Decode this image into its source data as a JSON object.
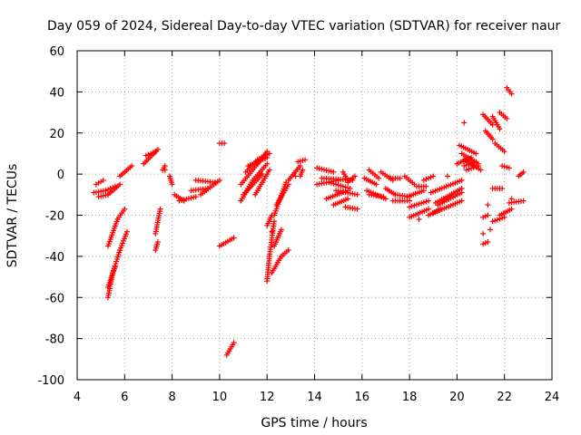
{
  "chart_data": {
    "type": "scatter",
    "title": "Day 059 of 2024, Sidereal Day-to-day VTEC variation (SDTVAR) for receiver naur",
    "xlabel": "GPS time / hours",
    "ylabel": "SDTVAR / TECUs",
    "xlim": [
      4,
      24
    ],
    "ylim": [
      -100,
      60
    ],
    "xticks": [
      4,
      6,
      8,
      10,
      12,
      14,
      16,
      18,
      20,
      22,
      24
    ],
    "yticks": [
      -100,
      -80,
      -60,
      -40,
      -20,
      0,
      20,
      40,
      60
    ],
    "grid": true,
    "marker": "+",
    "color": "#ff0000",
    "segments": [
      [
        [
          4.7,
          -9
        ],
        [
          5.2,
          -8
        ]
      ],
      [
        [
          4.8,
          -5
        ],
        [
          5.1,
          -3
        ]
      ],
      [
        [
          4.9,
          -11
        ],
        [
          5.3,
          -10
        ]
      ],
      [
        [
          5.2,
          -8
        ],
        [
          5.6,
          -6
        ]
      ],
      [
        [
          5.3,
          -10
        ],
        [
          5.8,
          -5
        ]
      ],
      [
        [
          5.8,
          -1
        ],
        [
          6.3,
          4
        ]
      ],
      [
        [
          5.3,
          -35
        ],
        [
          5.7,
          -22
        ],
        [
          6.0,
          -17
        ]
      ],
      [
        [
          5.3,
          -60
        ],
        [
          5.5,
          -48
        ],
        [
          5.8,
          -37
        ],
        [
          6.1,
          -28
        ]
      ],
      [
        [
          5.3,
          -55
        ],
        [
          5.6,
          -45
        ]
      ],
      [
        [
          6.8,
          5
        ],
        [
          7.4,
          12
        ]
      ],
      [
        [
          6.9,
          9
        ],
        [
          7.3,
          11
        ]
      ],
      [
        [
          7.6,
          2
        ],
        [
          7.7,
          4
        ]
      ],
      [
        [
          7.3,
          -37
        ],
        [
          7.4,
          -33
        ]
      ],
      [
        [
          7.3,
          -29
        ],
        [
          7.5,
          -17
        ]
      ],
      [
        [
          7.9,
          -1
        ],
        [
          8.0,
          -5
        ]
      ],
      [
        [
          8.1,
          -10
        ],
        [
          8.5,
          -13
        ]
      ],
      [
        [
          8.3,
          -13
        ],
        [
          9.0,
          -11
        ]
      ],
      [
        [
          8.8,
          -8
        ],
        [
          9.5,
          -7
        ]
      ],
      [
        [
          9.2,
          -10
        ],
        [
          10.0,
          -3
        ]
      ],
      [
        [
          9.0,
          -3
        ],
        [
          9.8,
          -4
        ]
      ],
      [
        [
          10.0,
          15
        ],
        [
          10.2,
          15
        ]
      ],
      [
        [
          10.0,
          -35
        ],
        [
          10.6,
          -31
        ]
      ],
      [
        [
          10.3,
          -88
        ],
        [
          10.6,
          -82
        ]
      ],
      [
        [
          10.9,
          -13
        ],
        [
          11.4,
          -3
        ],
        [
          12.0,
          5
        ]
      ],
      [
        [
          10.9,
          -5
        ],
        [
          11.6,
          5
        ],
        [
          12.0,
          11
        ]
      ],
      [
        [
          11.1,
          1
        ],
        [
          11.6,
          7
        ],
        [
          12.1,
          10
        ]
      ],
      [
        [
          11.0,
          -10
        ],
        [
          11.8,
          0
        ]
      ],
      [
        [
          11.2,
          4
        ],
        [
          12.0,
          8
        ]
      ],
      [
        [
          11.5,
          -10
        ],
        [
          12.1,
          2
        ]
      ],
      [
        [
          12.0,
          -52
        ],
        [
          12.1,
          -40
        ],
        [
          12.3,
          -23
        ]
      ],
      [
        [
          12.0,
          -25
        ],
        [
          12.2,
          -20
        ]
      ],
      [
        [
          12.2,
          -48
        ],
        [
          12.6,
          -40
        ],
        [
          12.9,
          -37
        ]
      ],
      [
        [
          12.3,
          -35
        ],
        [
          12.6,
          -27
        ]
      ],
      [
        [
          12.3,
          -20
        ],
        [
          12.8,
          -4
        ]
      ],
      [
        [
          12.4,
          -15
        ],
        [
          12.9,
          -5
        ]
      ],
      [
        [
          12.9,
          -3
        ],
        [
          13.4,
          4
        ]
      ],
      [
        [
          13.3,
          6
        ],
        [
          13.6,
          7
        ]
      ],
      [
        [
          13.4,
          -1
        ],
        [
          13.5,
          2
        ]
      ],
      [
        [
          14.1,
          3
        ],
        [
          14.8,
          1
        ]
      ],
      [
        [
          14.1,
          -5
        ],
        [
          15.0,
          -3
        ]
      ],
      [
        [
          14.3,
          -2
        ],
        [
          15.6,
          -3
        ]
      ],
      [
        [
          14.5,
          -12
        ],
        [
          15.4,
          -8
        ]
      ],
      [
        [
          14.6,
          -4
        ],
        [
          15.5,
          -7
        ]
      ],
      [
        [
          14.8,
          -15
        ],
        [
          15.4,
          -12
        ]
      ],
      [
        [
          14.9,
          -8
        ],
        [
          15.8,
          -10
        ]
      ],
      [
        [
          15.2,
          1
        ],
        [
          15.4,
          -3
        ]
      ],
      [
        [
          15.3,
          -16
        ],
        [
          15.8,
          -17
        ]
      ],
      [
        [
          15.4,
          -4
        ],
        [
          15.7,
          -1
        ]
      ],
      [
        [
          16.1,
          -2
        ],
        [
          16.6,
          -5
        ]
      ],
      [
        [
          16.2,
          -8
        ],
        [
          17.0,
          -12
        ]
      ],
      [
        [
          16.3,
          2
        ],
        [
          16.7,
          -2
        ]
      ],
      [
        [
          16.3,
          -10
        ],
        [
          16.9,
          -11
        ]
      ],
      [
        [
          16.8,
          1
        ],
        [
          17.3,
          -3
        ]
      ],
      [
        [
          17.0,
          -7
        ],
        [
          17.4,
          -10
        ]
      ],
      [
        [
          17.2,
          -2
        ],
        [
          17.6,
          -2
        ]
      ],
      [
        [
          17.4,
          -10
        ],
        [
          18.0,
          -11
        ]
      ],
      [
        [
          17.3,
          -13
        ],
        [
          18.0,
          -13
        ]
      ],
      [
        [
          17.8,
          -1
        ],
        [
          18.2,
          -5
        ]
      ],
      [
        [
          17.9,
          -11
        ],
        [
          18.6,
          -8
        ]
      ],
      [
        [
          18.0,
          -16
        ],
        [
          18.8,
          -13
        ]
      ],
      [
        [
          18.0,
          -21
        ],
        [
          18.8,
          -17
        ]
      ],
      [
        [
          18.3,
          -6
        ],
        [
          18.7,
          -6
        ]
      ],
      [
        [
          18.6,
          -3
        ],
        [
          19.0,
          -1
        ]
      ],
      [
        [
          18.8,
          -20
        ],
        [
          19.3,
          -17
        ]
      ],
      [
        [
          18.9,
          -9
        ],
        [
          20.2,
          -3
        ]
      ],
      [
        [
          19.1,
          -14
        ],
        [
          20.2,
          -7
        ]
      ],
      [
        [
          19.0,
          -19
        ],
        [
          20.2,
          -13
        ]
      ],
      [
        [
          19.2,
          -15
        ],
        [
          20.2,
          -9
        ]
      ],
      [
        [
          20.0,
          5
        ],
        [
          20.6,
          8
        ]
      ],
      [
        [
          20.1,
          14
        ],
        [
          20.8,
          10
        ]
      ],
      [
        [
          20.2,
          10
        ],
        [
          20.9,
          5
        ]
      ],
      [
        [
          20.3,
          7
        ],
        [
          21.0,
          2
        ]
      ],
      [
        [
          20.3,
          4
        ],
        [
          20.8,
          6
        ]
      ],
      [
        [
          20.4,
          2
        ],
        [
          20.9,
          4
        ]
      ],
      [
        [
          21.1,
          29
        ],
        [
          21.5,
          24
        ]
      ],
      [
        [
          21.5,
          28
        ],
        [
          21.8,
          22
        ]
      ],
      [
        [
          21.8,
          30
        ],
        [
          22.1,
          27
        ]
      ],
      [
        [
          21.2,
          21
        ],
        [
          21.5,
          17
        ]
      ],
      [
        [
          21.6,
          15
        ],
        [
          22.0,
          11
        ]
      ],
      [
        [
          22.1,
          42
        ],
        [
          22.3,
          39
        ]
      ],
      [
        [
          21.9,
          4
        ],
        [
          22.2,
          3
        ]
      ],
      [
        [
          22.6,
          -1
        ],
        [
          22.8,
          1
        ]
      ],
      [
        [
          21.1,
          -21
        ],
        [
          21.3,
          -20
        ]
      ],
      [
        [
          21.1,
          -34
        ],
        [
          21.3,
          -33
        ]
      ],
      [
        [
          21.5,
          -23
        ],
        [
          22.0,
          -21
        ]
      ],
      [
        [
          21.5,
          -7
        ],
        [
          21.9,
          -7
        ]
      ],
      [
        [
          21.8,
          -20
        ],
        [
          22.3,
          -17
        ]
      ],
      [
        [
          22.2,
          -14
        ],
        [
          22.8,
          -13
        ]
      ]
    ],
    "isolated_points": [
      [
        20.3,
        25
      ],
      [
        21.1,
        -29
      ],
      [
        21.4,
        -27
      ],
      [
        21.3,
        -15
      ],
      [
        22.3,
        -12
      ],
      [
        7.7,
        2
      ],
      [
        12.2,
        -28
      ],
      [
        13.2,
        -1
      ],
      [
        18.4,
        -22
      ],
      [
        19.6,
        -1
      ]
    ]
  }
}
